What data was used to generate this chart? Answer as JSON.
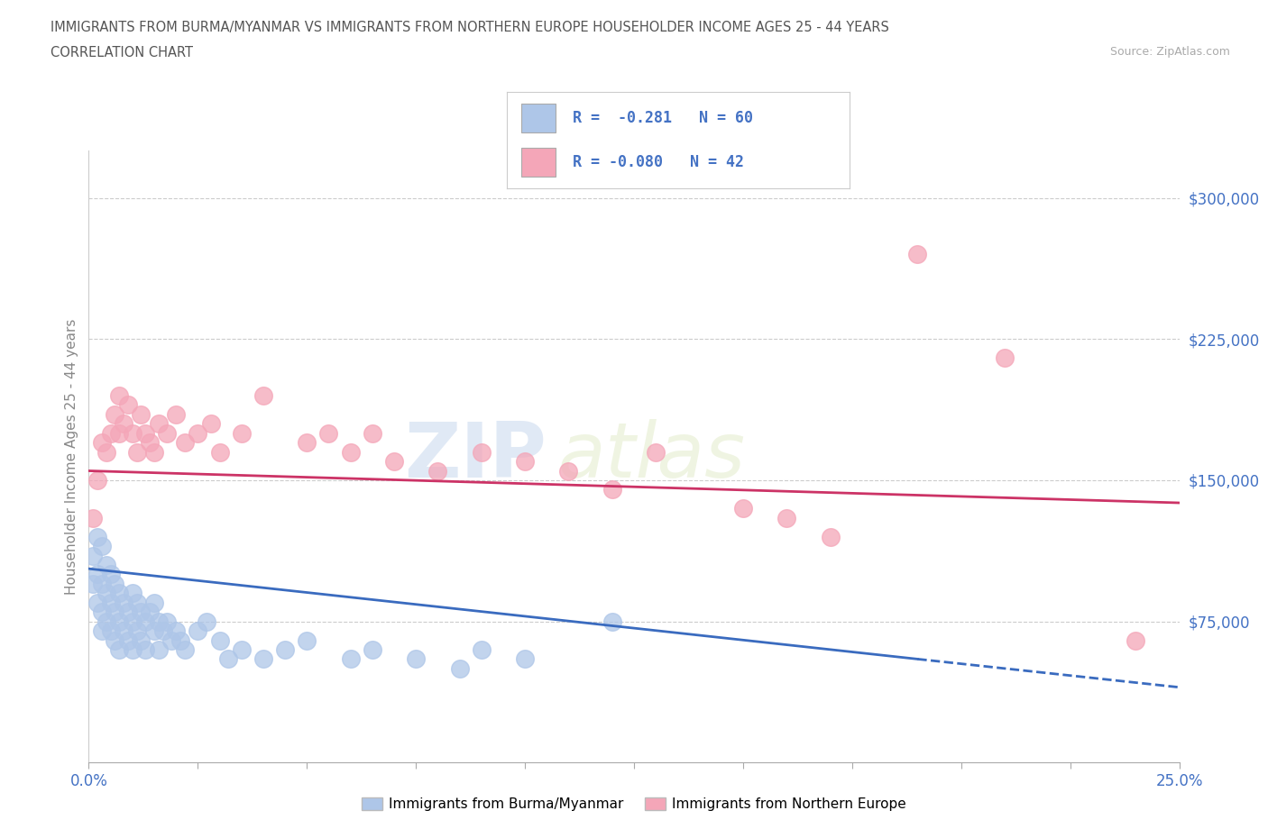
{
  "title_line1": "IMMIGRANTS FROM BURMA/MYANMAR VS IMMIGRANTS FROM NORTHERN EUROPE HOUSEHOLDER INCOME AGES 25 - 44 YEARS",
  "title_line2": "CORRELATION CHART",
  "source": "Source: ZipAtlas.com",
  "ylabel": "Householder Income Ages 25 - 44 years",
  "xlim": [
    0.0,
    0.25
  ],
  "ylim": [
    0,
    325000
  ],
  "xticks": [
    0.0,
    0.025,
    0.05,
    0.075,
    0.1,
    0.125,
    0.15,
    0.175,
    0.2,
    0.225,
    0.25
  ],
  "yticks": [
    0,
    75000,
    150000,
    225000,
    300000
  ],
  "yticklabels": [
    "",
    "$75,000",
    "$150,000",
    "$225,000",
    "$300,000"
  ],
  "blue_color": "#aec6e8",
  "pink_color": "#f4a6b8",
  "blue_label": "Immigrants from Burma/Myanmar",
  "pink_label": "Immigrants from Northern Europe",
  "legend_R_blue": "R =  -0.281   N = 60",
  "legend_R_pink": "R = -0.080   N = 42",
  "blue_scatter_x": [
    0.001,
    0.001,
    0.002,
    0.002,
    0.002,
    0.003,
    0.003,
    0.003,
    0.003,
    0.004,
    0.004,
    0.004,
    0.005,
    0.005,
    0.005,
    0.006,
    0.006,
    0.006,
    0.007,
    0.007,
    0.007,
    0.008,
    0.008,
    0.009,
    0.009,
    0.01,
    0.01,
    0.01,
    0.011,
    0.011,
    0.012,
    0.012,
    0.013,
    0.013,
    0.014,
    0.015,
    0.015,
    0.016,
    0.016,
    0.017,
    0.018,
    0.019,
    0.02,
    0.021,
    0.022,
    0.025,
    0.027,
    0.03,
    0.032,
    0.035,
    0.04,
    0.045,
    0.05,
    0.06,
    0.065,
    0.075,
    0.085,
    0.09,
    0.1,
    0.12
  ],
  "blue_scatter_y": [
    110000,
    95000,
    120000,
    100000,
    85000,
    115000,
    95000,
    80000,
    70000,
    105000,
    90000,
    75000,
    100000,
    85000,
    70000,
    95000,
    80000,
    65000,
    90000,
    75000,
    60000,
    85000,
    70000,
    80000,
    65000,
    90000,
    75000,
    60000,
    85000,
    70000,
    80000,
    65000,
    75000,
    60000,
    80000,
    85000,
    70000,
    75000,
    60000,
    70000,
    75000,
    65000,
    70000,
    65000,
    60000,
    70000,
    75000,
    65000,
    55000,
    60000,
    55000,
    60000,
    65000,
    55000,
    60000,
    55000,
    50000,
    60000,
    55000,
    75000
  ],
  "pink_scatter_x": [
    0.001,
    0.002,
    0.003,
    0.004,
    0.005,
    0.006,
    0.007,
    0.007,
    0.008,
    0.009,
    0.01,
    0.011,
    0.012,
    0.013,
    0.014,
    0.015,
    0.016,
    0.018,
    0.02,
    0.022,
    0.025,
    0.028,
    0.03,
    0.035,
    0.04,
    0.05,
    0.055,
    0.06,
    0.065,
    0.07,
    0.08,
    0.09,
    0.1,
    0.11,
    0.12,
    0.13,
    0.15,
    0.16,
    0.17,
    0.19,
    0.21,
    0.24
  ],
  "pink_scatter_y": [
    130000,
    150000,
    170000,
    165000,
    175000,
    185000,
    195000,
    175000,
    180000,
    190000,
    175000,
    165000,
    185000,
    175000,
    170000,
    165000,
    180000,
    175000,
    185000,
    170000,
    175000,
    180000,
    165000,
    175000,
    195000,
    170000,
    175000,
    165000,
    175000,
    160000,
    155000,
    165000,
    160000,
    155000,
    145000,
    165000,
    135000,
    130000,
    120000,
    270000,
    215000,
    65000
  ],
  "watermark_zip": "ZIP",
  "watermark_atlas": "atlas",
  "background_color": "#ffffff",
  "grid_color": "#cccccc",
  "title_color": "#555555",
  "axis_label_color": "#888888",
  "tick_label_color": "#4472c4",
  "blue_trend_solid": [
    0.0,
    103000,
    0.19,
    55000
  ],
  "blue_trend_dashed": [
    0.19,
    55000,
    0.25,
    40000
  ],
  "pink_trend": [
    0.0,
    155000,
    0.25,
    138000
  ]
}
